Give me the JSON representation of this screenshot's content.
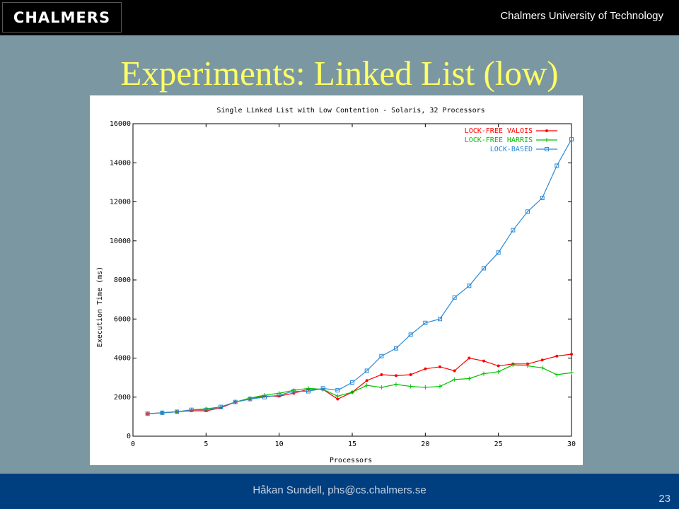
{
  "header": {
    "logo_text": "CHALMERS",
    "university": "Chalmers University of Technology"
  },
  "slide": {
    "title": "Experiments: Linked List (low)"
  },
  "footer": {
    "author": "Håkan Sundell, phs@cs.chalmers.se",
    "page_number": "23"
  },
  "colors": {
    "background": "#7b97a1",
    "title": "#ffff66",
    "footer": "#003f7f"
  },
  "chart_data": {
    "type": "line",
    "title": "Single Linked List with Low Contention - Solaris, 32 Processors",
    "xlabel": "Processors",
    "ylabel": "Execution Time (ms)",
    "xlim": [
      0,
      30
    ],
    "ylim": [
      0,
      16000
    ],
    "xticks": [
      0,
      5,
      10,
      15,
      20,
      25,
      30
    ],
    "yticks": [
      0,
      2000,
      4000,
      6000,
      8000,
      10000,
      12000,
      14000,
      16000
    ],
    "legend_position": "top-right",
    "grid": false,
    "x": [
      1,
      2,
      3,
      4,
      5,
      6,
      7,
      8,
      9,
      10,
      11,
      12,
      13,
      14,
      15,
      16,
      17,
      18,
      19,
      20,
      21,
      22,
      23,
      24,
      25,
      26,
      27,
      28,
      29,
      30
    ],
    "series": [
      {
        "name": "LOCK-FREE VALOIS",
        "color": "#ff0000",
        "marker": "dot",
        "values": [
          1150,
          1200,
          1250,
          1300,
          1300,
          1450,
          1750,
          1900,
          2050,
          2050,
          2200,
          2400,
          2400,
          1900,
          2250,
          2850,
          3150,
          3100,
          3150,
          3450,
          3550,
          3350,
          4000,
          3850,
          3600,
          3700,
          3700,
          3900,
          4100,
          4200
        ]
      },
      {
        "name": "LOCK-FREE HARRIS",
        "color": "#00c000",
        "marker": "plus",
        "values": [
          1150,
          1200,
          1250,
          1350,
          1400,
          1500,
          1750,
          1950,
          2100,
          2200,
          2350,
          2450,
          2400,
          2050,
          2250,
          2600,
          2500,
          2650,
          2550,
          2500,
          2550,
          2900,
          2950,
          3200,
          3300,
          3650,
          3600,
          3500,
          3150,
          3250
        ]
      },
      {
        "name": "LOCK-BASED",
        "color": "#2a8ad8",
        "marker": "square",
        "values": [
          1150,
          1200,
          1250,
          1350,
          1350,
          1500,
          1750,
          1900,
          2000,
          2100,
          2300,
          2300,
          2450,
          2350,
          2750,
          3350,
          4100,
          4500,
          5200,
          5800,
          6000,
          7100,
          7700,
          8600,
          9400,
          10550,
          11500,
          12200,
          13850,
          15200
        ]
      }
    ]
  }
}
